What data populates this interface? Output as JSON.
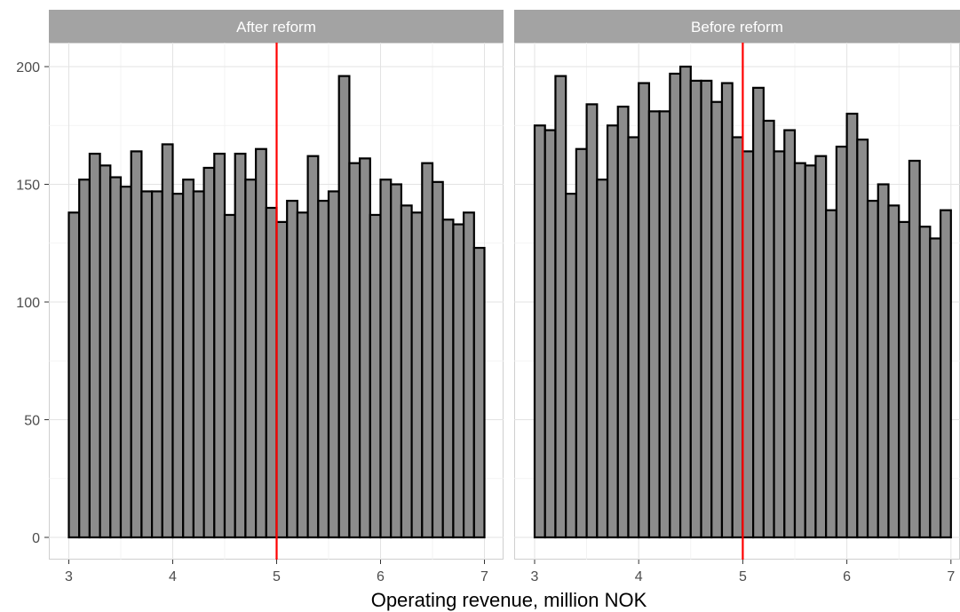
{
  "chart_data": {
    "type": "bar",
    "xlabel": "Operating revenue,  million NOK",
    "ylabel": "",
    "xlim": [
      3,
      7
    ],
    "ylim": [
      0,
      200
    ],
    "x_ticks": [
      "3",
      "4",
      "5",
      "6",
      "7"
    ],
    "y_ticks": [
      "0",
      "50",
      "100",
      "150",
      "200"
    ],
    "bin_start": 3,
    "bin_width": 0.1,
    "reference_line": {
      "x": 5,
      "color": "#ff0000"
    },
    "bar_fill": "#8c8c8c",
    "bar_outline": "#000000",
    "strip_fill": "#a3a3a3",
    "grid": true,
    "panels": [
      {
        "label": "After reform",
        "values": [
          138,
          152,
          163,
          158,
          153,
          149,
          164,
          147,
          147,
          167,
          146,
          152,
          147,
          157,
          163,
          137,
          163,
          152,
          165,
          140,
          134,
          143,
          138,
          162,
          143,
          147,
          196,
          159,
          161,
          137,
          152,
          150,
          141,
          138,
          159,
          151,
          135,
          133,
          138,
          123
        ]
      },
      {
        "label": "Before reform",
        "values": [
          175,
          173,
          196,
          146,
          165,
          184,
          152,
          175,
          183,
          170,
          193,
          181,
          181,
          197,
          200,
          194,
          194,
          185,
          193,
          170,
          164,
          191,
          177,
          164,
          173,
          159,
          158,
          162,
          139,
          166,
          180,
          169,
          143,
          150,
          141,
          134,
          160,
          132,
          127,
          139
        ]
      }
    ]
  }
}
